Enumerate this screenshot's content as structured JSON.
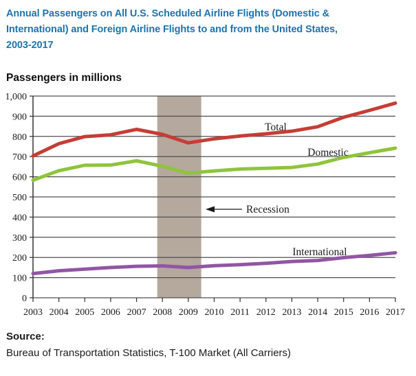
{
  "header": {
    "title_lines": [
      "Annual Passengers on All U.S. Scheduled Airline Flights (Domestic &",
      "International) and Foreign Airline Flights to and from the United States,",
      "2003-2017"
    ]
  },
  "subtitle": "Passengers in millions",
  "source": {
    "label": "Source:",
    "text": "Bureau of Transportation Statistics, T-100 Market (All Carriers)"
  },
  "chart_data": {
    "type": "line",
    "title": "Annual Passengers on All U.S. Scheduled Airline Flights (Domestic & International) and Foreign Airline Flights to and from the United States, 2003-2017",
    "ylabel": "Passengers in millions",
    "x": [
      2003,
      2004,
      2005,
      2006,
      2007,
      2008,
      2009,
      2010,
      2011,
      2012,
      2013,
      2014,
      2015,
      2016,
      2017
    ],
    "series": [
      {
        "name": "Total",
        "color": "#c63d35",
        "values": [
          703,
          764,
          799,
          808,
          835,
          810,
          768,
          788,
          802,
          813,
          826,
          848,
          895,
          929,
          965
        ]
      },
      {
        "name": "Domestic",
        "color": "#8fc43d",
        "values": [
          583,
          630,
          657,
          658,
          679,
          652,
          618,
          629,
          638,
          642,
          646,
          663,
          696,
          719,
          742
        ]
      },
      {
        "name": "International",
        "color": "#9156a3",
        "values": [
          120,
          134,
          142,
          150,
          156,
          158,
          150,
          159,
          164,
          171,
          180,
          185,
          199,
          210,
          223
        ]
      }
    ],
    "ylim": [
      0,
      1000
    ],
    "ytick_step": 100,
    "ytick_labels": [
      "0",
      "100",
      "200",
      "300",
      "400",
      "500",
      "600",
      "700",
      "800",
      "900",
      "1,000"
    ],
    "grid": true,
    "gridline_color": "#4f4f4f",
    "recession_band": {
      "label": "Recession",
      "x_start": 2007.8,
      "x_end": 2009.5,
      "color": "#b5a89d"
    },
    "legend_position": "inline-labels"
  }
}
